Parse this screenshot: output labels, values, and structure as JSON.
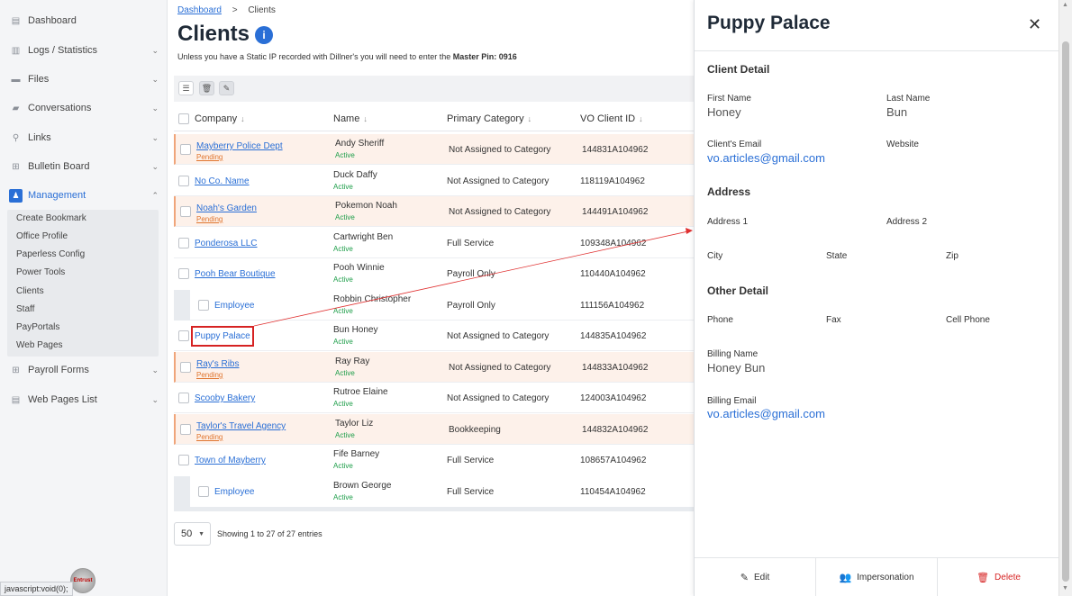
{
  "sidebar": {
    "items": [
      {
        "label": "Dashboard",
        "icon": "dashboard-icon"
      },
      {
        "label": "Logs / Statistics",
        "icon": "chart-icon"
      },
      {
        "label": "Files",
        "icon": "folder-icon"
      },
      {
        "label": "Conversations",
        "icon": "chat-icon"
      },
      {
        "label": "Links",
        "icon": "link-icon"
      },
      {
        "label": "Bulletin Board",
        "icon": "board-icon"
      },
      {
        "label": "Management",
        "icon": "management-icon"
      },
      {
        "label": "Payroll Forms",
        "icon": "grid-icon"
      },
      {
        "label": "Web Pages List",
        "icon": "list-icon"
      }
    ],
    "submenu": [
      "Create Bookmark",
      "Office Profile",
      "Paperless Config",
      "Power Tools",
      "Clients",
      "Staff",
      "PayPortals",
      "Web Pages"
    ],
    "status_bar": "javascript:void(0);",
    "badge": "Entrust"
  },
  "breadcrumb": {
    "parent": "Dashboard",
    "separator": ">",
    "current": "Clients"
  },
  "page": {
    "title": "Clients",
    "notice_prefix": "Unless you have a Static IP recorded with Dillner's you will need to enter the ",
    "notice_bold": "Master Pin: 0916"
  },
  "table": {
    "headers": [
      "Company",
      "Name",
      "Primary Category",
      "VO Client ID"
    ],
    "rows": [
      {
        "company": "Mayberry Police Dept",
        "company_status": "Pending",
        "name": "Andy Sheriff",
        "status": "Active",
        "category": "Not Assigned to Category",
        "vo_id": "144831A104962"
      },
      {
        "company": "No Co. Name",
        "company_status": "",
        "name": "Duck Daffy",
        "status": "Active",
        "category": "Not Assigned to Category",
        "vo_id": "118119A104962"
      },
      {
        "company": "Noah's Garden",
        "company_status": "Pending",
        "name": "Pokemon Noah",
        "status": "Active",
        "category": "Not Assigned to Category",
        "vo_id": "144491A104962"
      },
      {
        "company": "Ponderosa LLC",
        "company_status": "",
        "name": "Cartwright Ben",
        "status": "Active",
        "category": "Full Service",
        "vo_id": "109348A104962"
      },
      {
        "company": "Pooh Bear Boutique",
        "company_status": "",
        "name": "Pooh Winnie",
        "status": "Active",
        "category": "Payroll Only",
        "vo_id": "110440A104962"
      },
      {
        "company": "Employee",
        "company_status": "",
        "name": "Robbin Christopher",
        "status": "Active",
        "category": "Payroll Only",
        "vo_id": "111156A104962"
      },
      {
        "company": "Puppy Palace",
        "company_status": "",
        "name": "Bun Honey",
        "status": "Active",
        "category": "Not Assigned to Category",
        "vo_id": "144835A104962"
      },
      {
        "company": "Ray's Ribs",
        "company_status": "Pending",
        "name": "Ray Ray",
        "status": "Active",
        "category": "Not Assigned to Category",
        "vo_id": "144833A104962"
      },
      {
        "company": "Scooby Bakery",
        "company_status": "",
        "name": "Rutroe Elaine",
        "status": "Active",
        "category": "Not Assigned to Category",
        "vo_id": "124003A104962"
      },
      {
        "company": "Taylor's Travel Agency",
        "company_status": "Pending",
        "name": "Taylor Liz",
        "status": "Active",
        "category": "Bookkeeping",
        "vo_id": "144832A104962"
      },
      {
        "company": "Town of Mayberry",
        "company_status": "",
        "name": "Fife Barney",
        "status": "Active",
        "category": "Full Service",
        "vo_id": "108657A104962"
      },
      {
        "company": "Employee",
        "company_status": "",
        "name": "Brown George",
        "status": "Active",
        "category": "Full Service",
        "vo_id": "110454A104962"
      }
    ],
    "page_size": "50",
    "showing": "Showing 1 to 27 of 27 entries"
  },
  "panel": {
    "title": "Puppy Palace",
    "client_detail": {
      "heading": "Client Detail",
      "first_name_label": "First Name",
      "first_name": "Honey",
      "last_name_label": "Last Name",
      "last_name": "Bun",
      "email_label": "Client's Email",
      "email": "vo.articles@gmail.com",
      "website_label": "Website"
    },
    "address": {
      "heading": "Address",
      "address1_label": "Address 1",
      "address2_label": "Address 2",
      "city_label": "City",
      "state_label": "State",
      "zip_label": "Zip"
    },
    "other": {
      "heading": "Other Detail",
      "phone_label": "Phone",
      "fax_label": "Fax",
      "cell_label": "Cell Phone",
      "billing_name_label": "Billing Name",
      "billing_name": "Honey Bun",
      "billing_email_label": "Billing Email",
      "billing_email": "vo.articles@gmail.com"
    },
    "footer": {
      "edit": "Edit",
      "impersonation": "Impersonation",
      "delete": "Delete"
    }
  },
  "colors": {
    "accent": "#2a6fd6",
    "active": "#1e9e4a",
    "pending": "#e0752f",
    "danger": "#d62222"
  }
}
